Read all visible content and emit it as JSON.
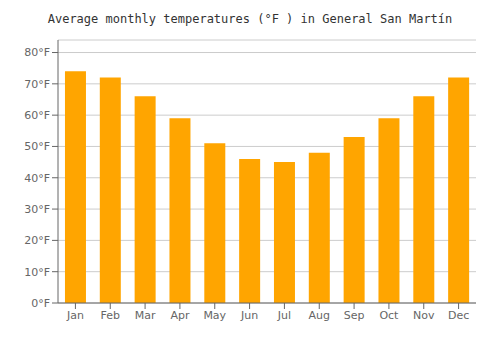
{
  "chart_data": {
    "type": "bar",
    "title": "Average monthly temperatures (°F ) in General San Martín",
    "categories": [
      "Jan",
      "Feb",
      "Mar",
      "Apr",
      "May",
      "Jun",
      "Jul",
      "Aug",
      "Sep",
      "Oct",
      "Nov",
      "Dec"
    ],
    "values": [
      74,
      72,
      66,
      59,
      51,
      46,
      45,
      48,
      53,
      59,
      66,
      72
    ],
    "color": "#FFA500",
    "ylim": [
      0,
      84
    ],
    "yticks": [
      {
        "value": 0,
        "label": "0°F"
      },
      {
        "value": 10,
        "label": "10°F"
      },
      {
        "value": 20,
        "label": "20°F"
      },
      {
        "value": 30,
        "label": "30°F"
      },
      {
        "value": 40,
        "label": "40°F"
      },
      {
        "value": 50,
        "label": "50°F"
      },
      {
        "value": 60,
        "label": "60°F"
      },
      {
        "value": 70,
        "label": "70°F"
      },
      {
        "value": 80,
        "label": "80°F"
      }
    ],
    "grid": true
  }
}
